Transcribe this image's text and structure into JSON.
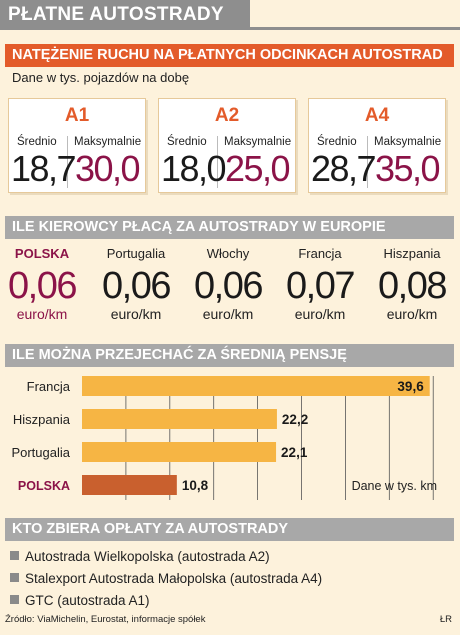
{
  "main_title": "PŁATNE AUTOSTRADY",
  "traffic": {
    "header": "NATĘŻENIE RUCHU NA PŁATNYCH ODCINKACH AUTOSTRAD",
    "subtitle": "Dane w tys. pojazdów na dobę",
    "highways": [
      {
        "name": "A1",
        "avg_label": "Średnio",
        "max_label": "Maksymalnie",
        "avg": "18,7",
        "max": "30,0"
      },
      {
        "name": "A2",
        "avg_label": "Średnio",
        "max_label": "Maksymalnie",
        "avg": "18,0",
        "max": "25,0"
      },
      {
        "name": "A4",
        "avg_label": "Średnio",
        "max_label": "Maksymalnie",
        "avg": "28,7",
        "max": "35,0"
      }
    ]
  },
  "costs": {
    "header": "ILE KIEROWCY PŁACĄ ZA AUTOSTRADY W EUROPIE",
    "items": [
      {
        "country": "POLSKA",
        "value": "0,06",
        "unit": "euro/km"
      },
      {
        "country": "Portugalia",
        "value": "0,06",
        "unit": "euro/km"
      },
      {
        "country": "Włochy",
        "value": "0,06",
        "unit": "euro/km"
      },
      {
        "country": "Francja",
        "value": "0,07",
        "unit": "euro/km"
      },
      {
        "country": "Hiszpania",
        "value": "0,08",
        "unit": "euro/km"
      }
    ]
  },
  "distance": {
    "header": "ILE MOŻNA PRZEJECHAĆ ZA ŚREDNIĄ PENSJĘ"
  },
  "chart_data": {
    "type": "bar",
    "orientation": "horizontal",
    "categories": [
      "Francja",
      "Hiszpania",
      "Portugalia",
      "POLSKA"
    ],
    "values": [
      39.6,
      22.2,
      22.1,
      10.8
    ],
    "value_labels": [
      "39,6",
      "22,2",
      "22,1",
      "10,8"
    ],
    "unit_note": "Dane w tys. km",
    "xlim": [
      0,
      41
    ],
    "grid": true,
    "colors": {
      "bar": "#f6b544",
      "highlight_bar": "#c9602e",
      "highlight_label": "#8b1348"
    }
  },
  "collectors": {
    "header": "KTO ZBIERA OPŁATY ZA AUTOSTRADY",
    "items": [
      "Autostrada Wielkopolska (autostrada A2)",
      "Stalexport Autostrada Małopolska (autostrada A4)",
      "GTC (autostrada A1)"
    ]
  },
  "source": "Źródło: ViaMichelin, Eurostat, informacje spółek",
  "author": "ŁR",
  "colors": {
    "background": "#fdf2dc",
    "orange_header": "#e35b2a",
    "grey_header": "#a8a8a8",
    "highlight": "#8b1348"
  }
}
